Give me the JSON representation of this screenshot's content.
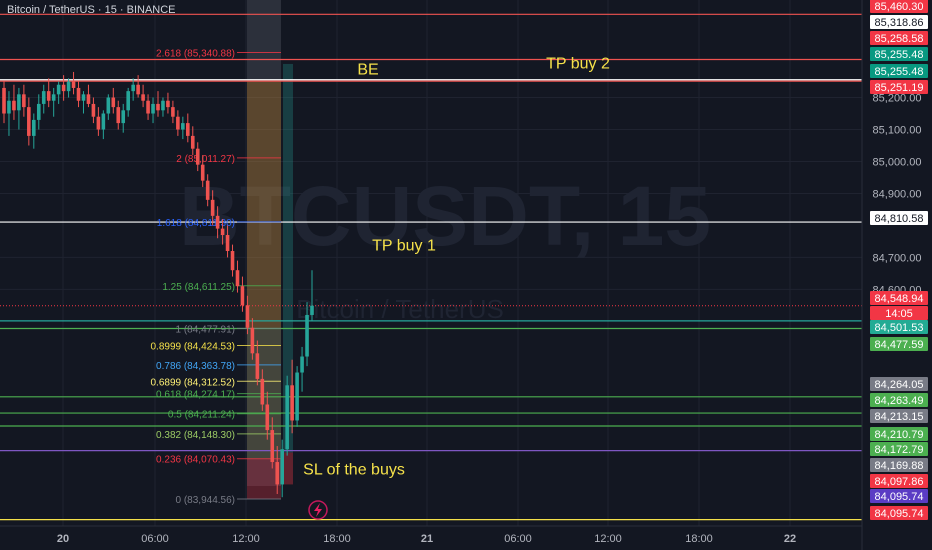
{
  "header": {
    "symbol_title": "Bitcoin / TetherUS · 15 · BINANCE"
  },
  "watermark": {
    "main": "BTCUSDT, 15",
    "sub": "Bitcoin / TetherUS"
  },
  "colors": {
    "background": "#131722",
    "up": "#26a69a",
    "down": "#ef5350",
    "grid": "#1f2330",
    "axis_text": "#b2b5be",
    "annotation": "#f5e14a"
  },
  "chart_data": {
    "type": "candlestick",
    "ylim": [
      83860,
      85505
    ],
    "x_ticks": [
      "20",
      "06:00",
      "12:00",
      "18:00",
      "21",
      "06:00",
      "12:00",
      "18:00",
      "22"
    ],
    "y_ticks": [
      85200,
      85100,
      85000,
      84900,
      84700,
      84600
    ],
    "y_tick_labels": [
      "85,200.00",
      "85,100.00",
      "85,000.00",
      "84,900.00",
      "84,700.00",
      "84,600.00"
    ],
    "horizontal_lines": [
      {
        "price": 85460.3,
        "color": "#ef5350"
      },
      {
        "price": 85318.86,
        "color": "#ef5350"
      },
      {
        "price": 85255.48,
        "color": "#ffffff"
      },
      {
        "price": 85251.19,
        "color": "#ef5350"
      },
      {
        "price": 84810.58,
        "color": "#ffffff"
      },
      {
        "price": 84501.53,
        "color": "#26a69a"
      },
      {
        "price": 84477.59,
        "color": "#4caf50"
      },
      {
        "price": 84264.05,
        "color": "#4caf50"
      },
      {
        "price": 84213.15,
        "color": "#4caf50"
      },
      {
        "price": 84172.79,
        "color": "#4caf50"
      },
      {
        "price": 84095.74,
        "color": "#7e57c2"
      },
      {
        "price": 83880.0,
        "color": "#f5e14a"
      }
    ],
    "price_labels": [
      {
        "text": "85,460.30",
        "price": 85460.3,
        "bg": "#f23645",
        "fg": "#ffffff"
      },
      {
        "text": "85,318.86",
        "price": 85318.86,
        "bg": "#ffffff",
        "fg": "#131722"
      },
      {
        "text": "85,258.58",
        "price": 85258.58,
        "bg": "#f23645",
        "fg": "#ffffff"
      },
      {
        "text": "85,255.48",
        "price": 85255.48,
        "bg": "#089981",
        "fg": "#ffffff"
      },
      {
        "text": "85,255.48",
        "price": 85255.48,
        "bg": "#089981",
        "fg": "#ffffff"
      },
      {
        "text": "85,251.19",
        "price": 85251.19,
        "bg": "#f23645",
        "fg": "#ffffff"
      },
      {
        "text": "84,810.58",
        "price": 84810.58,
        "bg": "#ffffff",
        "fg": "#131722"
      },
      {
        "text": "84,548.94",
        "price": 84548.94,
        "bg": "#f23645",
        "fg": "#ffffff"
      },
      {
        "text": "14:05",
        "price": 84548.94,
        "bg": "#f23645",
        "fg": "#ffffff"
      },
      {
        "text": "84,501.53",
        "price": 84501.53,
        "bg": "#22ab94",
        "fg": "#ffffff"
      },
      {
        "text": "84,477.59",
        "price": 84477.59,
        "bg": "#4caf50",
        "fg": "#ffffff"
      },
      {
        "text": "84,264.05",
        "price": 84264.05,
        "bg": "#787b86",
        "fg": "#ffffff"
      },
      {
        "text": "84,263.49",
        "price": 84263.49,
        "bg": "#4caf50",
        "fg": "#ffffff"
      },
      {
        "text": "84,213.15",
        "price": 84213.15,
        "bg": "#787b86",
        "fg": "#ffffff"
      },
      {
        "text": "84,210.79",
        "price": 84210.79,
        "bg": "#4caf50",
        "fg": "#ffffff"
      },
      {
        "text": "84,172.79",
        "price": 84172.79,
        "bg": "#4caf50",
        "fg": "#ffffff"
      },
      {
        "text": "84,169.88",
        "price": 84169.88,
        "bg": "#787b86",
        "fg": "#ffffff"
      },
      {
        "text": "84,097.86",
        "price": 84097.86,
        "bg": "#f23645",
        "fg": "#ffffff"
      },
      {
        "text": "84,095.74",
        "price": 84095.74,
        "bg": "#5b3cc4",
        "fg": "#ffffff"
      },
      {
        "text": "84,095.74",
        "price": 84095.74,
        "bg": "#f23645",
        "fg": "#ffffff"
      }
    ],
    "fib_levels": [
      {
        "ratio": "2.618",
        "text": "2.618 (85,340.88)",
        "price": 85340.88,
        "color": "#f23645"
      },
      {
        "ratio": "2",
        "text": "2 (85,011.27)",
        "price": 85011.27,
        "color": "#f23645"
      },
      {
        "ratio": "1.618",
        "text": "1.618 (84,811.30)",
        "price": 84811.3,
        "color": "#2962ff"
      },
      {
        "ratio": "1.25",
        "text": "1.25 (84,611.25)",
        "price": 84611.25,
        "color": "#4caf50"
      },
      {
        "ratio": "1",
        "text": "1 (84,477.91)",
        "price": 84477.91,
        "color": "#787b86"
      },
      {
        "ratio": "0.8999",
        "text": "0.8999 (84,424.53)",
        "price": 84424.53,
        "color": "#f5e14a"
      },
      {
        "ratio": "0.786",
        "text": "0.786 (84,363.78)",
        "price": 84363.78,
        "color": "#42a5f5"
      },
      {
        "ratio": "0.6899",
        "text": "0.6899 (84,312.52)",
        "price": 84312.52,
        "color": "#fff176"
      },
      {
        "ratio": "0.618",
        "text": "0.618 (84,274.17)",
        "price": 84274.17,
        "color": "#4caf50"
      },
      {
        "ratio": "0.5",
        "text": "0.5 (84,211.24)",
        "price": 84211.24,
        "color": "#4caf50"
      },
      {
        "ratio": "0.382",
        "text": "0.382 (84,148.30)",
        "price": 84148.3,
        "color": "#9ccc65"
      },
      {
        "ratio": "0.236",
        "text": "0.236 (84,070.43)",
        "price": 84070.43,
        "color": "#f23645"
      },
      {
        "ratio": "0",
        "text": "0 (83,944.56)",
        "price": 83944.56,
        "color": "#787b86"
      }
    ],
    "annotations": [
      {
        "text": "BE",
        "price": 85290
      },
      {
        "text": "TP buy 2",
        "price": 85310
      },
      {
        "text": "TP buy 1",
        "price": 84740
      },
      {
        "text": "SL of the buys",
        "price": 84040
      }
    ],
    "candles": [
      [
        85230,
        85250,
        85120,
        85150
      ],
      [
        85150,
        85220,
        85080,
        85190
      ],
      [
        85190,
        85240,
        85130,
        85160
      ],
      [
        85160,
        85230,
        85100,
        85210
      ],
      [
        85210,
        85240,
        85140,
        85170
      ],
      [
        85170,
        85200,
        85050,
        85080
      ],
      [
        85080,
        85150,
        85040,
        85130
      ],
      [
        85130,
        85210,
        85100,
        85180
      ],
      [
        85180,
        85240,
        85150,
        85220
      ],
      [
        85220,
        85260,
        85170,
        85190
      ],
      [
        85190,
        85230,
        85140,
        85210
      ],
      [
        85210,
        85250,
        85180,
        85240
      ],
      [
        85240,
        85270,
        85190,
        85220
      ],
      [
        85220,
        85260,
        85200,
        85250
      ],
      [
        85250,
        85280,
        85210,
        85230
      ],
      [
        85230,
        85250,
        85170,
        85190
      ],
      [
        85190,
        85220,
        85150,
        85210
      ],
      [
        85210,
        85240,
        85170,
        85180
      ],
      [
        85180,
        85200,
        85120,
        85140
      ],
      [
        85140,
        85170,
        85080,
        85100
      ],
      [
        85100,
        85160,
        85070,
        85150
      ],
      [
        85150,
        85210,
        85130,
        85200
      ],
      [
        85200,
        85230,
        85150,
        85170
      ],
      [
        85170,
        85190,
        85100,
        85120
      ],
      [
        85120,
        85180,
        85090,
        85160
      ],
      [
        85160,
        85230,
        85140,
        85220
      ],
      [
        85220,
        85260,
        85190,
        85240
      ],
      [
        85240,
        85270,
        85200,
        85210
      ],
      [
        85210,
        85240,
        85170,
        85190
      ],
      [
        85190,
        85210,
        85130,
        85150
      ],
      [
        85150,
        85200,
        85120,
        85180
      ],
      [
        85180,
        85220,
        85140,
        85160
      ],
      [
        85160,
        85200,
        85140,
        85190
      ],
      [
        85190,
        85215,
        85150,
        85170
      ],
      [
        85170,
        85190,
        85120,
        85140
      ],
      [
        85140,
        85160,
        85080,
        85100
      ],
      [
        85100,
        85140,
        85070,
        85120
      ],
      [
        85120,
        85150,
        85060,
        85080
      ],
      [
        85080,
        85110,
        85020,
        85040
      ],
      [
        85040,
        85060,
        84970,
        84990
      ],
      [
        84990,
        85020,
        84920,
        84940
      ],
      [
        84940,
        84960,
        84860,
        84880
      ],
      [
        84880,
        84910,
        84800,
        84830
      ],
      [
        84830,
        84860,
        84760,
        84790
      ],
      [
        84790,
        84820,
        84740,
        84770
      ],
      [
        84770,
        84800,
        84700,
        84720
      ],
      [
        84720,
        84740,
        84640,
        84660
      ],
      [
        84660,
        84690,
        84590,
        84610
      ],
      [
        84610,
        84640,
        84530,
        84550
      ],
      [
        84550,
        84580,
        84460,
        84480
      ],
      [
        84480,
        84510,
        84380,
        84400
      ],
      [
        84400,
        84440,
        84300,
        84320
      ],
      [
        84320,
        84350,
        84220,
        84240
      ],
      [
        84240,
        84280,
        84130,
        84160
      ],
      [
        84160,
        84200,
        84040,
        84060
      ],
      [
        84060,
        84110,
        83960,
        83990
      ],
      [
        83990,
        84130,
        83950,
        84100
      ],
      [
        84100,
        84330,
        84080,
        84300
      ],
      [
        84300,
        84380,
        84150,
        84190
      ],
      [
        84190,
        84360,
        84170,
        84340
      ],
      [
        84340,
        84420,
        84280,
        84390
      ],
      [
        84390,
        84560,
        84360,
        84520
      ],
      [
        84520,
        84660,
        84500,
        84548.94
      ]
    ]
  }
}
